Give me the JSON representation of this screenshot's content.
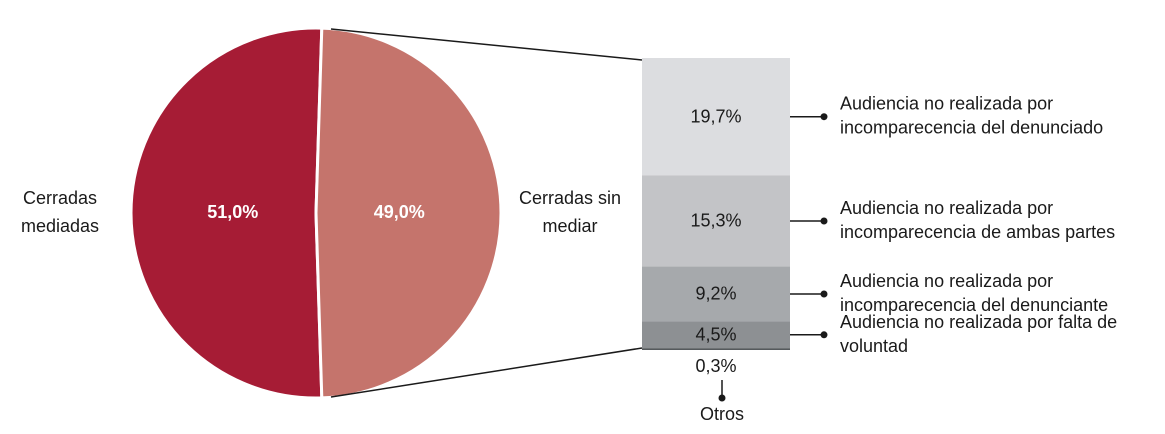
{
  "chart_data": [
    {
      "type": "pie",
      "categories": [
        [
          "Cerradas",
          "mediadas"
        ],
        [
          "Cerradas sin",
          "mediar"
        ]
      ],
      "values": [
        51,
        49
      ],
      "value_labels": [
        "51,0%",
        "49,0%"
      ],
      "colors": [
        "#a61c35",
        "#c5746c"
      ]
    },
    {
      "type": "bar",
      "stacked": true,
      "categories": [
        [
          "Audiencia no realizada por",
          "incomparecencia del denunciado"
        ],
        [
          "Audiencia no realizada por",
          "incomparecencia de ambas partes"
        ],
        [
          "Audiencia no realizada por",
          "incomparecencia del denunciante"
        ],
        [
          "Audiencia no realizada por falta de",
          "voluntad"
        ],
        [
          "Otros"
        ]
      ],
      "values": [
        19.7,
        15.3,
        9.2,
        4.5,
        0.3
      ],
      "value_labels": [
        "19,7%",
        "15,3%",
        "9,2%",
        "4,5%",
        "0,3%"
      ],
      "colors": [
        "#dcdde0",
        "#c3c4c7",
        "#a6a9ac",
        "#8d9093",
        "#55595c"
      ]
    }
  ]
}
